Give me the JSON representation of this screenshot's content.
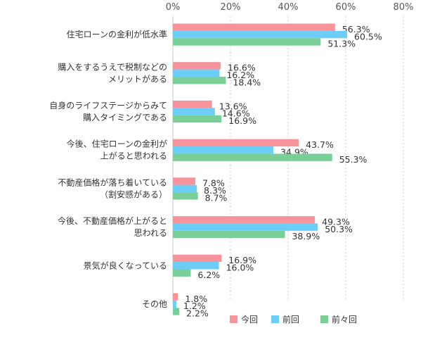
{
  "chart_data": {
    "type": "bar",
    "orientation": "horizontal",
    "categories": [
      [
        "住宅ローンの金利が低水準"
      ],
      [
        "購入をするうえで税制などの",
        "メリットがある"
      ],
      [
        "自身のライフステージからみて",
        "購入タイミングである"
      ],
      [
        "今後、住宅ローンの金利が",
        "上がると思われる"
      ],
      [
        "不動産価格が落ち着いている",
        "（割安感がある）"
      ],
      [
        "今後、不動産価格が上がると",
        "思われる"
      ],
      [
        "景気が良くなっている"
      ],
      [
        "その他"
      ]
    ],
    "series": [
      {
        "name": "今回",
        "color": "#f7949b",
        "values": [
          56.3,
          16.6,
          13.6,
          43.7,
          7.8,
          49.3,
          16.9,
          1.8
        ]
      },
      {
        "name": "前回",
        "color": "#6ccdf7",
        "values": [
          60.5,
          16.2,
          14.6,
          34.9,
          8.3,
          50.3,
          16.0,
          1.2
        ]
      },
      {
        "name": "前々回",
        "color": "#79cf97",
        "values": [
          51.3,
          18.4,
          16.9,
          55.3,
          8.7,
          38.9,
          6.2,
          2.2
        ]
      }
    ],
    "value_labels": [
      [
        "56.3%",
        "16.6%",
        "13.6%",
        "43.7%",
        "7.8%",
        "49.3%",
        "16.9%",
        "1.8%"
      ],
      [
        "60.5%",
        "16.2%",
        "14.6%",
        "34.9%",
        "8.3%",
        "50.3%",
        "16.0%",
        "1.2%"
      ],
      [
        "51.3%",
        "18.4%",
        "16.9%",
        "55.3%",
        "8.7%",
        "38.9%",
        "6.2%",
        "2.2%"
      ]
    ],
    "xlim": [
      0,
      80
    ],
    "ticks": [
      0,
      20,
      40,
      60,
      80
    ],
    "tick_labels": [
      "0%",
      "20%",
      "40%",
      "60%",
      "80%"
    ],
    "grid": "vertical dashed",
    "legend_position": "bottom-right"
  }
}
